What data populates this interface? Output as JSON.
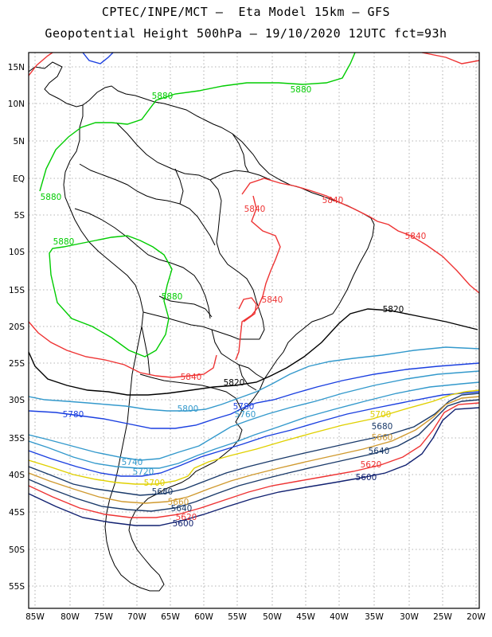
{
  "title_line1": "CPTEC/INPE/MCT –  Eta Model 15km – GFS",
  "title_line2": "Geopotential Height 500hPa – 19/10/2020 12UTC fct=93h",
  "lat_labels": [
    "15N",
    "10N",
    "5N",
    "EQ",
    "5S",
    "10S",
    "15S",
    "20S",
    "25S",
    "30S",
    "35S",
    "40S",
    "45S",
    "50S",
    "55S"
  ],
  "lon_labels": [
    "85W",
    "80W",
    "75W",
    "70W",
    "65W",
    "60W",
    "55W",
    "50W",
    "45W",
    "40W",
    "35W",
    "30W",
    "25W",
    "20W"
  ],
  "contour_labels": [
    {
      "text": "5880",
      "color": "#00cc00"
    },
    {
      "text": "5880",
      "color": "#00cc00"
    },
    {
      "text": "5880",
      "color": "#00cc00"
    },
    {
      "text": "5880",
      "color": "#00cc00"
    },
    {
      "text": "5880",
      "color": "#00cc00"
    },
    {
      "text": "5840",
      "color": "#ee3333"
    },
    {
      "text": "5840",
      "color": "#ee3333"
    },
    {
      "text": "5840",
      "color": "#ee3333"
    },
    {
      "text": "5840",
      "color": "#ee3333"
    },
    {
      "text": "5840",
      "color": "#ee3333"
    },
    {
      "text": "5820",
      "color": "#000000"
    },
    {
      "text": "5820",
      "color": "#000000"
    },
    {
      "text": "5800",
      "color": "#3399cc"
    },
    {
      "text": "5780",
      "color": "#1a3fe0"
    },
    {
      "text": "5780",
      "color": "#1a3fe0"
    },
    {
      "text": "5760",
      "color": "#3399cc"
    },
    {
      "text": "5740",
      "color": "#3399cc"
    },
    {
      "text": "5720",
      "color": "#3399cc"
    },
    {
      "text": "5700",
      "color": "#e0d000"
    },
    {
      "text": "5700",
      "color": "#e0d000"
    },
    {
      "text": "5680",
      "color": "#1a3a6a"
    },
    {
      "text": "5680",
      "color": "#1a3a6a"
    },
    {
      "text": "5660",
      "color": "#d09a30"
    },
    {
      "text": "5660",
      "color": "#d09a30"
    },
    {
      "text": "5640",
      "color": "#1a3a6a"
    },
    {
      "text": "5640",
      "color": "#1a3a6a"
    },
    {
      "text": "5620",
      "color": "#ee3333"
    },
    {
      "text": "5620",
      "color": "#ee3333"
    },
    {
      "text": "5600",
      "color": "#102070"
    },
    {
      "text": "5600",
      "color": "#102070"
    }
  ]
}
